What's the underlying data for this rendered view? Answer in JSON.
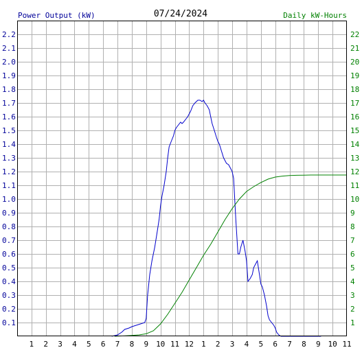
{
  "header": {
    "left_label": "Power Output (kW)",
    "date": "07/24/2024",
    "right_label": "Daily kW-Hours"
  },
  "colors": {
    "power": "#0000cc",
    "energy": "#008000",
    "grid": "#b0b0b0",
    "axis": "#000000",
    "left_text": "#000099",
    "right_text": "#008000"
  },
  "chart_data": {
    "type": "line",
    "x_range": [
      0,
      23
    ],
    "x_ticks": [
      "1",
      "2",
      "3",
      "4",
      "5",
      "6",
      "7",
      "8",
      "9",
      "10",
      "11",
      "12",
      "1",
      "2",
      "3",
      "4",
      "5",
      "6",
      "7",
      "8",
      "9",
      "10",
      "11"
    ],
    "y_left_range": [
      0,
      2.3
    ],
    "y_left_ticks": [
      "0.1",
      "0.2",
      "0.3",
      "0.4",
      "0.5",
      "0.6",
      "0.7",
      "0.8",
      "0.9",
      "1.0",
      "1.1",
      "1.2",
      "1.3",
      "1.4",
      "1.5",
      "1.6",
      "1.7",
      "1.8",
      "1.9",
      "2.0",
      "2.1",
      "2.2"
    ],
    "y_right_range": [
      0,
      23
    ],
    "y_right_ticks": [
      "1",
      "2",
      "3",
      "4",
      "5",
      "6",
      "7",
      "8",
      "9",
      "10",
      "11",
      "12",
      "13",
      "14",
      "15",
      "16",
      "17",
      "18",
      "19",
      "20",
      "21",
      "22"
    ],
    "grid": true,
    "series": [
      {
        "axis": "left",
        "x": [
          6.6,
          6.8,
          7.0,
          7.3,
          7.5,
          7.8,
          8.0,
          8.3,
          8.6,
          8.9,
          9.0,
          9.1,
          9.25,
          9.4,
          9.6,
          9.75,
          9.9,
          10.0,
          10.1,
          10.25,
          10.4,
          10.5,
          10.6,
          10.75,
          10.9,
          11.0,
          11.1,
          11.25,
          11.4,
          11.5,
          11.6,
          11.75,
          11.9,
          12.0,
          12.1,
          12.25,
          12.4,
          12.5,
          12.6,
          12.75,
          12.9,
          13.0,
          13.1,
          13.25,
          13.4,
          13.5,
          13.6,
          13.75,
          13.9,
          14.0,
          14.1,
          14.25,
          14.4,
          14.5,
          14.6,
          14.75,
          14.9,
          15.0,
          15.1,
          15.25,
          15.4,
          15.5,
          15.6,
          15.75,
          15.9,
          16.0,
          16.1,
          16.25,
          16.4,
          16.5,
          16.6,
          16.75,
          16.9,
          17.0,
          17.1,
          17.25,
          17.4,
          17.5,
          17.6,
          17.75,
          17.9,
          18.0,
          18.1,
          18.25,
          18.4,
          18.5,
          18.6,
          18.75,
          18.9,
          19.0,
          19.1,
          19.25,
          19.4,
          19.5,
          19.6,
          19.75,
          19.9,
          20.0,
          20.2,
          20.4,
          20.6,
          20.8,
          21.0,
          21.2
        ],
        "y": [
          0.0,
          0.005,
          0.01,
          0.03,
          0.05,
          0.06,
          0.07,
          0.08,
          0.09,
          0.1,
          0.13,
          0.3,
          0.45,
          0.55,
          0.65,
          0.75,
          0.85,
          0.95,
          1.02,
          1.1,
          1.2,
          1.3,
          1.38,
          1.42,
          1.46,
          1.5,
          1.52,
          1.54,
          1.56,
          1.55,
          1.56,
          1.58,
          1.6,
          1.62,
          1.64,
          1.68,
          1.7,
          1.71,
          1.72,
          1.72,
          1.71,
          1.72,
          1.7,
          1.68,
          1.65,
          1.6,
          1.55,
          1.5,
          1.45,
          1.42,
          1.4,
          1.35,
          1.3,
          1.28,
          1.26,
          1.25,
          1.22,
          1.2,
          1.15,
          0.85,
          0.6,
          0.6,
          0.65,
          0.7,
          0.62,
          0.55,
          0.4,
          0.42,
          0.45,
          0.5,
          0.52,
          0.55,
          0.45,
          0.38,
          0.36,
          0.3,
          0.22,
          0.15,
          0.12,
          0.1,
          0.08,
          0.06,
          0.03,
          0.01,
          0.0,
          0.0,
          0.0,
          0.0,
          0.0,
          0.0,
          0.0,
          0.0,
          0.0,
          0.0,
          0.0,
          0.0,
          0.0,
          0.0,
          0.0,
          0.0,
          0.0,
          0.0,
          0.0,
          0.0
        ]
      },
      {
        "axis": "right",
        "x": [
          6.8,
          7.0,
          7.5,
          8.0,
          8.5,
          9.0,
          9.5,
          10.0,
          10.5,
          11.0,
          11.5,
          12.0,
          12.5,
          13.0,
          13.5,
          14.0,
          14.5,
          15.0,
          15.5,
          16.0,
          16.5,
          17.0,
          17.5,
          18.0,
          18.5,
          19.0,
          19.5,
          20.0,
          20.5,
          21.0,
          22.0,
          23.0
        ],
        "y": [
          0.0,
          0.01,
          0.03,
          0.06,
          0.1,
          0.18,
          0.4,
          0.9,
          1.6,
          2.4,
          3.2,
          4.1,
          5.0,
          5.9,
          6.7,
          7.6,
          8.5,
          9.3,
          10.0,
          10.55,
          10.9,
          11.2,
          11.45,
          11.6,
          11.67,
          11.71,
          11.73,
          11.74,
          11.75,
          11.75,
          11.75,
          11.75
        ]
      }
    ]
  }
}
